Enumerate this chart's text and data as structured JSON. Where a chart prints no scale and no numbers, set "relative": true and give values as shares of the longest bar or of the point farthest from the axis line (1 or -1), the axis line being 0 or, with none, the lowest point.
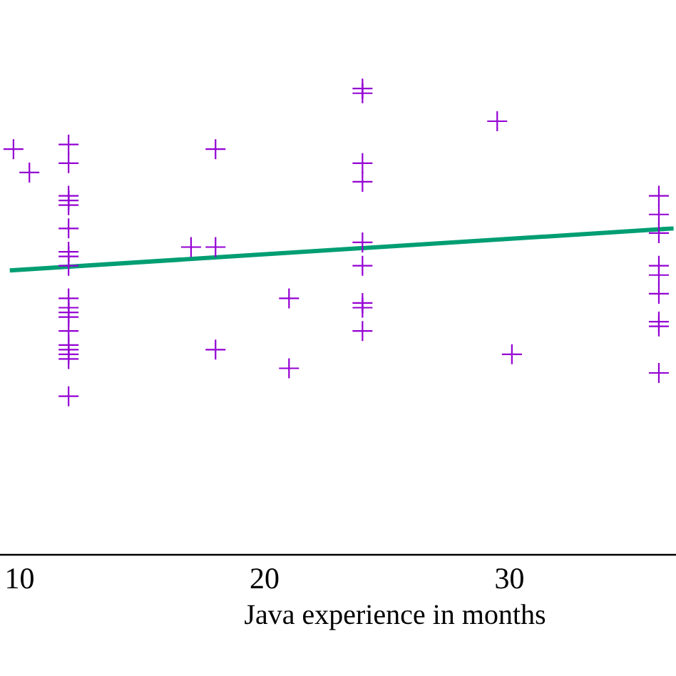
{
  "chart_data": {
    "type": "scatter",
    "xlabel": "Java experience in months",
    "relative": true,
    "xlim": [
      9.2,
      36.8
    ],
    "xticks": [
      10,
      20,
      30
    ],
    "series": [
      {
        "color": "#9400d3",
        "marker": "cross",
        "x": [
          9.75,
          10.4,
          12,
          12,
          12,
          12,
          12,
          12,
          12,
          12,
          12,
          12,
          12,
          12,
          12,
          12,
          12,
          12,
          12,
          12,
          12,
          17,
          18,
          18,
          18,
          21,
          21,
          24,
          24,
          24,
          24,
          24,
          24,
          24,
          24,
          24,
          29.5,
          30.1,
          36.1,
          36.1,
          36.1,
          36.1,
          36.1,
          36.1,
          36.1,
          36.1,
          36.1
        ],
        "values": [
          0.87,
          0.82,
          0.88,
          0.84,
          0.77,
          0.76,
          0.75,
          0.7,
          0.65,
          0.64,
          0.62,
          0.55,
          0.53,
          0.52,
          0.51,
          0.48,
          0.45,
          0.44,
          0.43,
          0.42,
          0.34,
          0.66,
          0.87,
          0.66,
          0.44,
          0.55,
          0.4,
          1.0,
          0.99,
          0.84,
          0.8,
          0.67,
          0.62,
          0.54,
          0.53,
          0.48,
          0.93,
          0.43,
          0.77,
          0.73,
          0.69,
          0.62,
          0.6,
          0.56,
          0.5,
          0.49,
          0.39
        ]
      },
      {
        "type": "line",
        "color": "#009e73",
        "x": [
          9.6,
          36.7
        ],
        "values": [
          0.61,
          0.7
        ]
      }
    ]
  }
}
